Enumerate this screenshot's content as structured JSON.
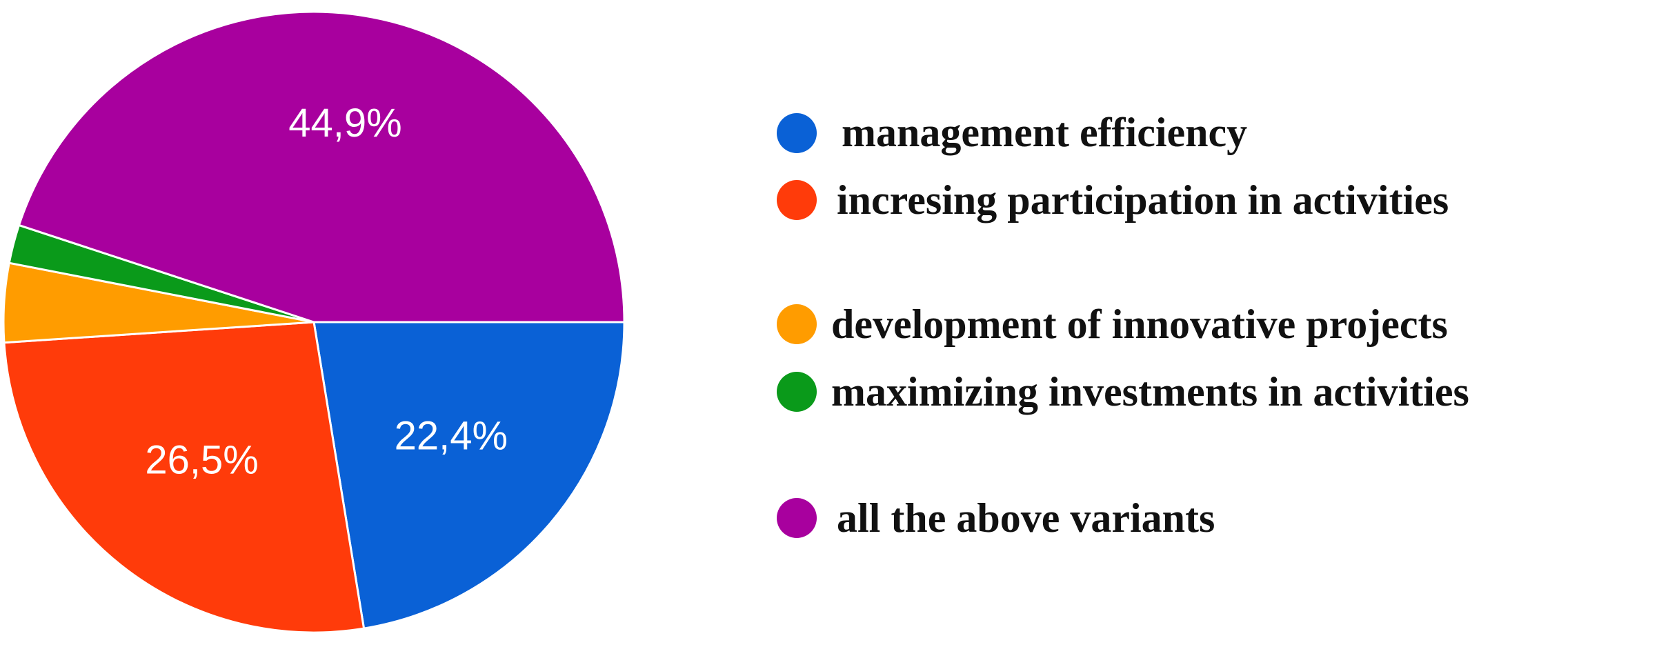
{
  "chart_data": {
    "type": "pie",
    "start": "right-horizontal",
    "direction": "clockwise",
    "slices": [
      {
        "label": "management efficiency",
        "value": 22.4,
        "display": "22,4%",
        "color": "#0a61d6"
      },
      {
        "label": "incresing participation in activities",
        "value": 26.5,
        "display": "26,5%",
        "color": "#ff3b0a"
      },
      {
        "label": "development of innovative projects",
        "value": 4.1,
        "display": "",
        "color": "#ff9c00"
      },
      {
        "label": "maximizing investments in activities",
        "value": 2.0,
        "display": "",
        "color": "#0a9a1a"
      },
      {
        "label": "all the above variants",
        "value": 44.9,
        "display": "44,9%",
        "color": "#a8009e"
      }
    ],
    "legend": {
      "placement": "right",
      "items": [
        {
          "label": "management efficiency",
          "color": "#0a61d6"
        },
        {
          "label": "incresing participation in activities",
          "color": "#ff3b0a"
        },
        {
          "label": "development of innovative projects",
          "color": "#ff9c00"
        },
        {
          "label": "maximizing investments in activities",
          "color": "#0a9a1a"
        },
        {
          "label": "all the above variants",
          "color": "#a8009e"
        }
      ]
    }
  }
}
